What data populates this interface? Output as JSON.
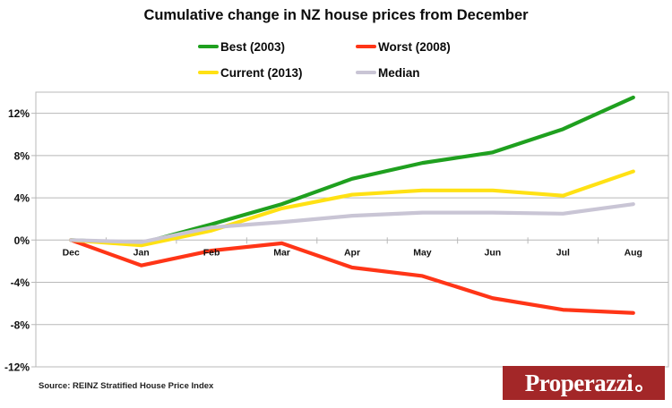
{
  "title": "Cumulative change in NZ house prices from December",
  "legend": {
    "items": [
      {
        "label": "Best (2003)",
        "color": "#1fa01f"
      },
      {
        "label": "Worst (2008)",
        "color": "#ff3517"
      },
      {
        "label": "Current (2013)",
        "color": "#ffe114"
      },
      {
        "label": "Median",
        "color": "#c9c5d5"
      }
    ]
  },
  "chart_data": {
    "type": "line",
    "categories": [
      "Dec",
      "Jan",
      "Feb",
      "Mar",
      "Apr",
      "May",
      "Jun",
      "Jul",
      "Aug"
    ],
    "series": [
      {
        "name": "Best (2003)",
        "color": "#1fa01f",
        "values": [
          0,
          -0.3,
          1.5,
          3.4,
          5.8,
          7.3,
          8.3,
          10.5,
          13.5
        ]
      },
      {
        "name": "Worst (2008)",
        "color": "#ff3517",
        "values": [
          0,
          -2.4,
          -1.0,
          -0.3,
          -2.6,
          -3.4,
          -5.5,
          -6.6,
          -6.9
        ]
      },
      {
        "name": "Current (2013)",
        "color": "#ffe114",
        "values": [
          0,
          -0.5,
          0.9,
          3.0,
          4.3,
          4.7,
          4.7,
          4.2,
          6.5
        ]
      },
      {
        "name": "Median",
        "color": "#c9c5d5",
        "values": [
          0,
          -0.2,
          1.2,
          1.7,
          2.3,
          2.6,
          2.6,
          2.5,
          3.4
        ]
      }
    ],
    "title": "Cumulative change in NZ house prices from December",
    "xlabel": "",
    "ylabel": "",
    "ylim": [
      -12,
      14
    ],
    "yticks": [
      {
        "value": 12,
        "label": "12%"
      },
      {
        "value": 8,
        "label": "8%"
      },
      {
        "value": 4,
        "label": "4%"
      },
      {
        "value": 0,
        "label": "0%"
      },
      {
        "value": -4,
        "label": "-4%"
      },
      {
        "value": -8,
        "label": "-8%"
      },
      {
        "value": -12,
        "label": "-12%"
      }
    ],
    "grid": true,
    "grid_color": "#b8b8b8",
    "legend_position": "top"
  },
  "source": "Source: REINZ Stratified House Price Index",
  "logo": {
    "text": "Properazzi",
    "bg_color": "#a32728",
    "text_color": "#ffffff"
  }
}
